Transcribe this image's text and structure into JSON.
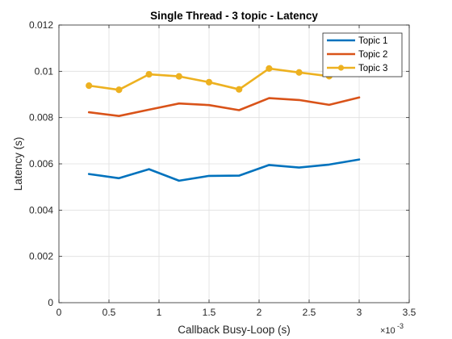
{
  "chart_data": {
    "type": "line",
    "title": "Single Thread - 3 topic - Latency",
    "xlabel": "Callback Busy-Loop (s)",
    "ylabel": "Latency (s)",
    "x_multiplier_base": "×10",
    "x_multiplier_exp": "-3",
    "xlim": [
      0,
      3.5
    ],
    "ylim": [
      0,
      0.012
    ],
    "x_ticks": [
      0,
      0.5,
      1,
      1.5,
      2,
      2.5,
      3,
      3.5
    ],
    "x_tick_labels": [
      "0",
      "0.5",
      "1",
      "1.5",
      "2",
      "2.5",
      "3",
      "3.5"
    ],
    "y_ticks": [
      0,
      0.002,
      0.004,
      0.006,
      0.008,
      0.01,
      0.012
    ],
    "y_tick_labels": [
      "0",
      "0.002",
      "0.004",
      "0.006",
      "0.008",
      "0.01",
      "0.012"
    ],
    "grid": true,
    "legend_position": "top-right",
    "x": [
      0.3,
      0.6,
      0.9,
      1.2,
      1.5,
      1.8,
      2.1,
      2.4,
      2.7,
      3.0
    ],
    "series": [
      {
        "name": "Topic 1",
        "color": "#0072BD",
        "marker": "none",
        "values": [
          0.00556,
          0.00538,
          0.00577,
          0.00527,
          0.00548,
          0.00549,
          0.00595,
          0.00584,
          0.00597,
          0.00619
        ]
      },
      {
        "name": "Topic 2",
        "color": "#D95319",
        "marker": "none",
        "values": [
          0.00823,
          0.00807,
          0.00834,
          0.00861,
          0.00854,
          0.00832,
          0.00884,
          0.00876,
          0.00855,
          0.00887
        ]
      },
      {
        "name": "Topic 3",
        "color": "#EDB120",
        "marker": "circle",
        "values": [
          0.00938,
          0.0092,
          0.00987,
          0.00978,
          0.00953,
          0.00922,
          0.01012,
          0.00995,
          0.00979,
          0.01003
        ]
      }
    ]
  }
}
